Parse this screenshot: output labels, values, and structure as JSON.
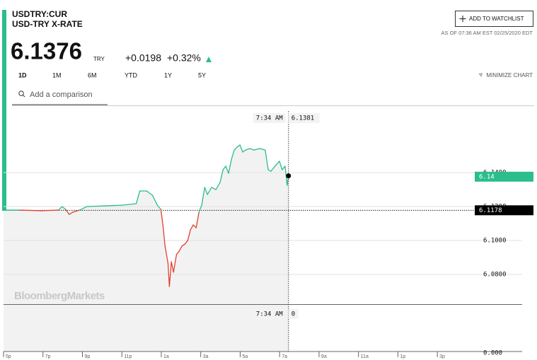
{
  "header": {
    "symbol": "USDTRY:CUR",
    "name": "USD-TRY X-RATE",
    "price": "6.1376",
    "currency": "TRY",
    "change": "+0.0198",
    "change_pct": "+0.32%",
    "as_of": "AS OF 07:36 AM EST 02/25/2020 EDT",
    "watchlist_button": "ADD TO WATCHLIST"
  },
  "tabs": [
    "1D",
    "1M",
    "6M",
    "YTD",
    "1Y",
    "5Y"
  ],
  "minimize": "MINIMIZE CHART",
  "search_placeholder": "Add a comparison",
  "chart_data": {
    "type": "line",
    "x": [
      0,
      0.82,
      1.9,
      2.79,
      2.97,
      3.15,
      3.33,
      3.51,
      3.86,
      4.22,
      5.12,
      6.01,
      6.73,
      6.91,
      7.26,
      7.55,
      7.8,
      7.98,
      8.09,
      8.19,
      8.34,
      8.41,
      8.51,
      8.62,
      8.77,
      8.91,
      9.05,
      9.2,
      9.34,
      9.48,
      9.62,
      9.77,
      9.91,
      10.05,
      10.2,
      10.34,
      10.55,
      10.77,
      10.98,
      11.13,
      11.27,
      11.41,
      11.56,
      11.7,
      11.84,
      11.99,
      12.13,
      12.27,
      12.49,
      12.7,
      12.99,
      13.27,
      13.42,
      13.56,
      13.77,
      13.99,
      14.13,
      14.28,
      14.38,
      14.45
    ],
    "values": [
      6.1179,
      6.1179,
      6.1175,
      6.1179,
      6.12,
      6.1183,
      6.1154,
      6.1167,
      6.1179,
      6.12,
      6.1204,
      6.1208,
      6.1217,
      6.1292,
      6.1292,
      6.1267,
      6.1208,
      6.1183,
      6.1083,
      6.0967,
      6.0867,
      6.0729,
      6.0875,
      6.0813,
      6.0917,
      6.0938,
      6.0967,
      6.0979,
      6.1,
      6.1063,
      6.1092,
      6.1075,
      6.1167,
      6.1208,
      6.1313,
      6.1271,
      6.1313,
      6.13,
      6.1342,
      6.1417,
      6.1438,
      6.1396,
      6.1479,
      6.1533,
      6.155,
      6.1563,
      6.1521,
      6.1533,
      6.1542,
      6.1533,
      6.1542,
      6.1533,
      6.1417,
      6.1408,
      6.1438,
      6.1467,
      6.1417,
      6.1438,
      6.1325,
      6.1376
    ],
    "up_color": "#2bbd8e",
    "down_color": "#e0402f",
    "xlim": [
      0,
      26.3
    ],
    "xticks": [
      {
        "value": 0,
        "label": "5p"
      },
      {
        "value": 2,
        "label": "7p"
      },
      {
        "value": 4,
        "label": "9p"
      },
      {
        "value": 6,
        "label": "11p"
      },
      {
        "value": 8,
        "label": "1a"
      },
      {
        "value": 10,
        "label": "3a"
      },
      {
        "value": 12,
        "label": "5a"
      },
      {
        "value": 14,
        "label": "7a"
      },
      {
        "value": 16,
        "label": "9a"
      },
      {
        "value": 18,
        "label": "11a"
      },
      {
        "value": 20,
        "label": "1p"
      },
      {
        "value": 22,
        "label": "3p"
      }
    ],
    "ylim": [
      6.0625,
      6.1792
    ],
    "yticks": [
      {
        "value": 6.08,
        "label": "6.0800"
      },
      {
        "value": 6.1,
        "label": "6.1000"
      },
      {
        "value": 6.12,
        "label": "6.1200"
      },
      {
        "value": 6.14,
        "label": "6.1400"
      }
    ],
    "previous_close": {
      "value": 6.1178,
      "label": "6.1178"
    },
    "last": {
      "value": 6.1376,
      "label": "6.14"
    },
    "crosshair": {
      "time": "7:34 AM",
      "value": 6.1381,
      "volume": 0
    },
    "volume_yticks": [
      {
        "value": 0,
        "label": "0.000"
      }
    ],
    "watermark": "BloombergMarkets",
    "grid": true
  }
}
